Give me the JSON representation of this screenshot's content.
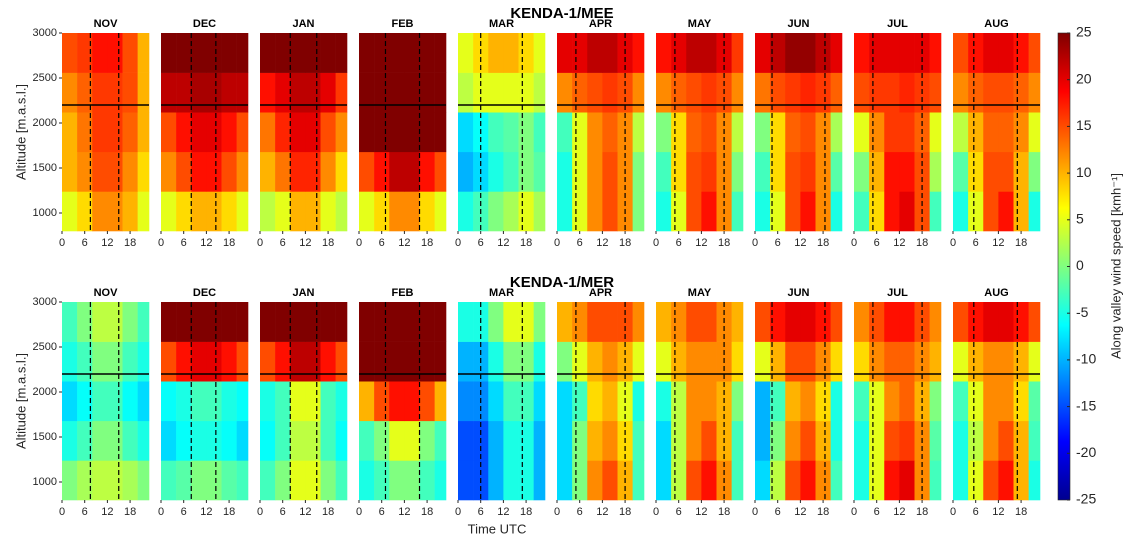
{
  "axes": {
    "xlabel": "Time UTC",
    "ylabel": "Altitude [m.a.s.l.]",
    "xlim": [
      0,
      23
    ],
    "ylim": [
      800,
      3000
    ],
    "xticks": [
      0,
      6,
      12,
      18
    ],
    "yticks": [
      1000,
      1500,
      2000,
      2500,
      3000
    ],
    "x_edges": [
      0,
      4,
      8,
      12,
      16,
      20,
      23
    ],
    "y_edges": [
      800,
      1240,
      1680,
      2120,
      2560,
      3000
    ],
    "hline": 2200
  },
  "colorbar": {
    "label": "Along valley wind speed [kmh⁻¹]",
    "lim": [
      -25,
      25
    ],
    "ticks": [
      -25,
      -20,
      -15,
      -10,
      -5,
      0,
      5,
      10,
      15,
      20,
      25
    ],
    "colormap": "jet"
  },
  "chart_data": [
    {
      "type": "heatmap-row",
      "title": "KENDA-1/MEE",
      "panels": [
        {
          "title": "NOV",
          "vlines": [
            7.5,
            15
          ],
          "z": [
            [
              5,
              8,
              12,
              12,
              10,
              5
            ],
            [
              10,
              12,
              15,
              15,
              12,
              8
            ],
            [
              10,
              13,
              16,
              16,
              14,
              10
            ],
            [
              12,
              14,
              16,
              16,
              15,
              10
            ],
            [
              15,
              16,
              18,
              18,
              15,
              10
            ]
          ]
        },
        {
          "title": "DEC",
          "vlines": [
            8,
            14.5
          ],
          "z": [
            [
              5,
              8,
              10,
              10,
              8,
              5
            ],
            [
              12,
              15,
              18,
              18,
              15,
              12
            ],
            [
              15,
              18,
              20,
              20,
              18,
              15
            ],
            [
              22,
              22,
              23,
              23,
              22,
              22
            ],
            [
              25,
              25,
              25,
              25,
              25,
              25
            ]
          ]
        },
        {
          "title": "JAN",
          "vlines": [
            8,
            15
          ],
          "z": [
            [
              3,
              5,
              10,
              10,
              5,
              3
            ],
            [
              10,
              13,
              17,
              17,
              12,
              8
            ],
            [
              13,
              17,
              20,
              20,
              15,
              12
            ],
            [
              18,
              20,
              22,
              22,
              20,
              16
            ],
            [
              25,
              25,
              25,
              25,
              25,
              25
            ]
          ]
        },
        {
          "title": "FEB",
          "vlines": [
            7,
            16
          ],
          "z": [
            [
              5,
              8,
              12,
              12,
              8,
              5
            ],
            [
              15,
              18,
              22,
              22,
              18,
              15
            ],
            [
              25,
              25,
              25,
              25,
              25,
              25
            ],
            [
              25,
              25,
              25,
              25,
              25,
              25
            ],
            [
              25,
              25,
              25,
              25,
              25,
              25
            ]
          ]
        },
        {
          "title": "MAR",
          "vlines": [
            6,
            17
          ],
          "z": [
            [
              -5,
              -3,
              0,
              2,
              5,
              2
            ],
            [
              -10,
              -8,
              -5,
              -3,
              0,
              -2
            ],
            [
              -8,
              -6,
              -3,
              -2,
              0,
              -3
            ],
            [
              3,
              5,
              5,
              5,
              5,
              3
            ],
            [
              5,
              8,
              10,
              10,
              8,
              5
            ]
          ]
        },
        {
          "title": "APR",
          "vlines": [
            5,
            18
          ],
          "z": [
            [
              -5,
              5,
              12,
              15,
              12,
              0
            ],
            [
              -5,
              5,
              12,
              15,
              12,
              0
            ],
            [
              -3,
              5,
              12,
              14,
              12,
              3
            ],
            [
              12,
              14,
              15,
              16,
              15,
              12
            ],
            [
              20,
              20,
              22,
              22,
              20,
              18
            ]
          ]
        },
        {
          "title": "MAY",
          "vlines": [
            5,
            18
          ],
          "z": [
            [
              -5,
              5,
              15,
              18,
              12,
              -3
            ],
            [
              -3,
              8,
              15,
              16,
              12,
              0
            ],
            [
              0,
              8,
              14,
              15,
              12,
              3
            ],
            [
              12,
              14,
              15,
              16,
              15,
              12
            ],
            [
              18,
              20,
              22,
              22,
              20,
              16
            ]
          ]
        },
        {
          "title": "JUN",
          "vlines": [
            4.5,
            18.5
          ],
          "z": [
            [
              -5,
              5,
              15,
              18,
              12,
              -5
            ],
            [
              -3,
              8,
              15,
              16,
              12,
              -2
            ],
            [
              0,
              8,
              14,
              15,
              12,
              2
            ],
            [
              13,
              15,
              16,
              17,
              16,
              14
            ],
            [
              20,
              22,
              24,
              24,
              22,
              20
            ]
          ]
        },
        {
          "title": "JUL",
          "vlines": [
            5,
            18
          ],
          "z": [
            [
              -3,
              8,
              18,
              20,
              15,
              -3
            ],
            [
              0,
              10,
              18,
              18,
              15,
              2
            ],
            [
              5,
              12,
              16,
              16,
              14,
              5
            ],
            [
              15,
              16,
              16,
              17,
              16,
              15
            ],
            [
              18,
              20,
              20,
              20,
              20,
              18
            ]
          ]
        },
        {
          "title": "AUG",
          "vlines": [
            5.5,
            17
          ],
          "z": [
            [
              -5,
              5,
              15,
              18,
              10,
              -5
            ],
            [
              -2,
              8,
              15,
              15,
              10,
              0
            ],
            [
              3,
              10,
              14,
              14,
              12,
              5
            ],
            [
              12,
              14,
              15,
              15,
              14,
              12
            ],
            [
              15,
              18,
              20,
              20,
              18,
              15
            ]
          ]
        }
      ]
    },
    {
      "type": "heatmap-row",
      "title": "KENDA-1/MER",
      "panels": [
        {
          "title": "NOV",
          "vlines": [
            7.5,
            15
          ],
          "z": [
            [
              0,
              2,
              3,
              3,
              2,
              0
            ],
            [
              -5,
              -3,
              0,
              0,
              -3,
              -5
            ],
            [
              -8,
              -6,
              -3,
              -3,
              -6,
              -8
            ],
            [
              -5,
              -3,
              0,
              0,
              -3,
              -5
            ],
            [
              -3,
              0,
              3,
              3,
              0,
              -3
            ]
          ]
        },
        {
          "title": "DEC",
          "vlines": [
            8,
            14.5
          ],
          "z": [
            [
              -3,
              -2,
              0,
              0,
              -2,
              -3
            ],
            [
              -8,
              -6,
              -5,
              -5,
              -6,
              -8
            ],
            [
              -6,
              -5,
              -3,
              -3,
              -5,
              -6
            ],
            [
              15,
              18,
              20,
              20,
              18,
              15
            ],
            [
              25,
              25,
              25,
              25,
              25,
              25
            ]
          ]
        },
        {
          "title": "JAN",
          "vlines": [
            8,
            15
          ],
          "z": [
            [
              -3,
              0,
              5,
              5,
              0,
              -3
            ],
            [
              -6,
              -3,
              3,
              3,
              -3,
              -6
            ],
            [
              -5,
              -3,
              5,
              5,
              -3,
              -5
            ],
            [
              15,
              18,
              22,
              22,
              18,
              15
            ],
            [
              25,
              25,
              25,
              25,
              25,
              25
            ]
          ]
        },
        {
          "title": "FEB",
          "vlines": [
            7,
            16
          ],
          "z": [
            [
              -5,
              -3,
              0,
              0,
              -3,
              -5
            ],
            [
              -3,
              0,
              5,
              5,
              0,
              -3
            ],
            [
              10,
              15,
              18,
              18,
              15,
              10
            ],
            [
              25,
              25,
              25,
              25,
              25,
              25
            ],
            [
              25,
              25,
              25,
              25,
              25,
              25
            ]
          ]
        },
        {
          "title": "MAR",
          "vlines": [
            6,
            17
          ],
          "z": [
            [
              -15,
              -15,
              -10,
              -5,
              -5,
              -10
            ],
            [
              -15,
              -15,
              -10,
              -5,
              -5,
              -10
            ],
            [
              -12,
              -12,
              -8,
              -3,
              -3,
              -8
            ],
            [
              -10,
              -10,
              -5,
              0,
              0,
              -5
            ],
            [
              -5,
              -5,
              0,
              5,
              5,
              0
            ]
          ]
        },
        {
          "title": "APR",
          "vlines": [
            5,
            18
          ],
          "z": [
            [
              -8,
              0,
              12,
              15,
              10,
              -3
            ],
            [
              -8,
              0,
              10,
              12,
              8,
              -3
            ],
            [
              -8,
              -3,
              8,
              10,
              5,
              -5
            ],
            [
              0,
              5,
              10,
              12,
              10,
              5
            ],
            [
              10,
              12,
              15,
              15,
              15,
              12
            ]
          ]
        },
        {
          "title": "MAY",
          "vlines": [
            5,
            18
          ],
          "z": [
            [
              -8,
              3,
              15,
              18,
              12,
              -3
            ],
            [
              -8,
              3,
              12,
              15,
              10,
              -3
            ],
            [
              -5,
              3,
              12,
              12,
              10,
              0
            ],
            [
              5,
              10,
              12,
              12,
              12,
              8
            ],
            [
              10,
              12,
              15,
              15,
              12,
              10
            ]
          ]
        },
        {
          "title": "JUN",
          "vlines": [
            4.5,
            18.5
          ],
          "z": [
            [
              -8,
              3,
              15,
              18,
              12,
              -3
            ],
            [
              -10,
              0,
              12,
              15,
              10,
              -5
            ],
            [
              -10,
              -3,
              10,
              12,
              8,
              -5
            ],
            [
              5,
              10,
              15,
              15,
              12,
              8
            ],
            [
              15,
              18,
              20,
              20,
              18,
              15
            ]
          ]
        },
        {
          "title": "JUL",
          "vlines": [
            5,
            18
          ],
          "z": [
            [
              -5,
              5,
              18,
              20,
              12,
              -3
            ],
            [
              -5,
              5,
              15,
              16,
              12,
              -2
            ],
            [
              -3,
              5,
              12,
              14,
              10,
              0
            ],
            [
              8,
              12,
              14,
              14,
              12,
              10
            ],
            [
              12,
              15,
              18,
              18,
              15,
              12
            ]
          ]
        },
        {
          "title": "AUG",
          "vlines": [
            5.5,
            17
          ],
          "z": [
            [
              -5,
              5,
              15,
              18,
              10,
              -5
            ],
            [
              -5,
              3,
              12,
              15,
              10,
              -3
            ],
            [
              -3,
              5,
              12,
              12,
              8,
              -2
            ],
            [
              5,
              10,
              12,
              12,
              10,
              5
            ],
            [
              15,
              18,
              20,
              20,
              18,
              15
            ]
          ]
        }
      ]
    }
  ]
}
